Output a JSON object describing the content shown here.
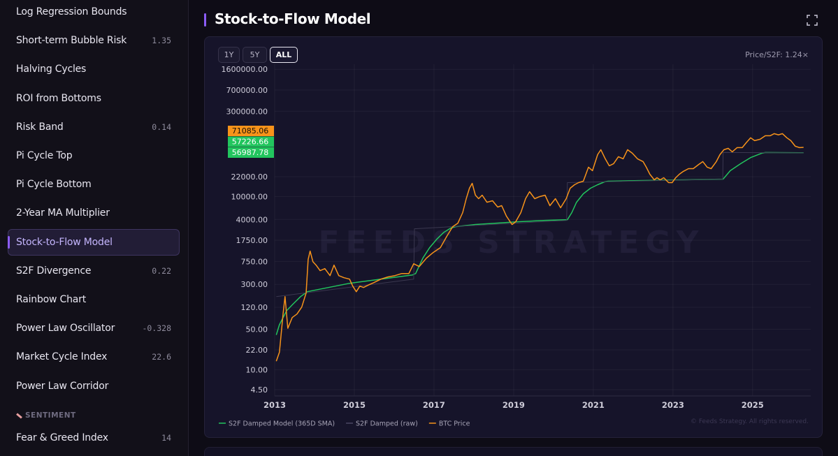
{
  "sidebar": {
    "items": [
      {
        "label": "Log Regression Bounds"
      },
      {
        "label": "Short-term Bubble Risk",
        "value": "1.35"
      },
      {
        "label": "Halving Cycles"
      },
      {
        "label": "ROI from Bottoms"
      },
      {
        "label": "Risk Band",
        "value": "0.14"
      },
      {
        "label": "Pi Cycle Top"
      },
      {
        "label": "Pi Cycle Bottom"
      },
      {
        "label": "2-Year MA Multiplier"
      },
      {
        "label": "Stock-to-Flow Model",
        "active": true
      },
      {
        "label": "S2F Divergence",
        "value": "0.22"
      },
      {
        "label": "Rainbow Chart"
      },
      {
        "label": "Power Law Oscillator",
        "value": "-0.328"
      },
      {
        "label": "Market Cycle Index",
        "value": "22.6"
      },
      {
        "label": "Power Law Corridor"
      }
    ],
    "section": "SENTIMENT",
    "section_items": [
      {
        "label": "Fear & Greed Index",
        "value": "14"
      }
    ]
  },
  "header": {
    "title": "Stock-to-Flow Model"
  },
  "range_buttons": {
    "options": [
      "1Y",
      "5Y",
      "ALL"
    ],
    "selected": "ALL"
  },
  "ratio_label": "Price/S2F: 1.24×",
  "chart_data": {
    "type": "line",
    "watermark": "FEEDS STRATEGY",
    "copyright": "© Feeds Strategy. All rights reserved.",
    "log_y": true,
    "grid": true,
    "legend": "bottom-left",
    "xlim": [
      2013,
      2026.46
    ],
    "xticks": [
      2013,
      2015,
      2017,
      2019,
      2021,
      2023,
      2025
    ],
    "ylim": [
      3.5,
      1800000
    ],
    "yticks": [
      {
        "value": 4.5,
        "label": "4.50"
      },
      {
        "value": 10,
        "label": "10.00"
      },
      {
        "value": 22,
        "label": "22.00"
      },
      {
        "value": 50,
        "label": "50.00"
      },
      {
        "value": 120,
        "label": "120.00"
      },
      {
        "value": 300,
        "label": "300.00"
      },
      {
        "value": 750,
        "label": "750.00"
      },
      {
        "value": 1750,
        "label": "1750.00"
      },
      {
        "value": 4000,
        "label": "4000.00"
      },
      {
        "value": 10000,
        "label": "10000.00"
      },
      {
        "value": 22000,
        "label": "22000.00"
      },
      {
        "value": 300000,
        "label": "300000.00"
      },
      {
        "value": 700000,
        "label": "700000.00"
      },
      {
        "value": 1600000,
        "label": "1600000.00"
      }
    ],
    "series": [
      {
        "name": "S2F Damped Model (365D SMA)",
        "color": "#22c55e",
        "current_value": 57226.66,
        "x": [
          2013.04,
          2013.12,
          2013.3,
          2013.47,
          2013.65,
          2013.82,
          2014.35,
          2014.88,
          2015.4,
          2015.93,
          2016.46,
          2016.54,
          2016.72,
          2016.89,
          2017.07,
          2017.25,
          2017.42,
          2017.54,
          2018.04,
          2018.56,
          2019.09,
          2019.79,
          2020.35,
          2020.46,
          2020.58,
          2020.75,
          2020.93,
          2021.11,
          2021.28,
          2021.37,
          2022.25,
          2023.3,
          2024.26,
          2024.44,
          2024.7,
          2024.96,
          2025.23,
          2025.32,
          2026.28
        ],
        "values": [
          40,
          60,
          105,
          139,
          184,
          224,
          265,
          313,
          350,
          391,
          437,
          462,
          855,
          1300,
          1816,
          2399,
          2838,
          3000,
          3266,
          3451,
          3648,
          3855,
          3963,
          5248,
          7962,
          11140,
          13930,
          16000,
          17910,
          18410,
          18920,
          19450,
          20000,
          27990,
          36980,
          47530,
          56230,
          57810,
          57227
        ]
      },
      {
        "name": "S2F Damped (raw)",
        "color": "#3b3850",
        "current_value": 56987.78,
        "x": [
          2013.04,
          2016.49,
          2016.51,
          2020.33,
          2020.35,
          2024.25,
          2024.26,
          2026.28
        ],
        "values": [
          184,
          370,
          2761,
          3855,
          17420,
          20000,
          57810,
          56988
        ]
      },
      {
        "name": "BTC Price",
        "color": "#f7931a",
        "current_value": 71085.06,
        "x": [
          2013.04,
          2013.12,
          2013.21,
          2013.26,
          2013.33,
          2013.44,
          2013.56,
          2013.68,
          2013.79,
          2013.84,
          2013.89,
          2013.96,
          2014.04,
          2014.14,
          2014.26,
          2014.39,
          2014.49,
          2014.61,
          2014.74,
          2014.88,
          2014.96,
          2015.05,
          2015.14,
          2015.23,
          2015.37,
          2015.49,
          2015.67,
          2015.84,
          2016.02,
          2016.19,
          2016.37,
          2016.49,
          2016.63,
          2016.81,
          2016.98,
          2017.16,
          2017.33,
          2017.47,
          2017.6,
          2017.72,
          2017.81,
          2017.89,
          2017.96,
          2018.04,
          2018.12,
          2018.21,
          2018.33,
          2018.47,
          2018.6,
          2018.7,
          2018.82,
          2018.96,
          2019.05,
          2019.18,
          2019.3,
          2019.4,
          2019.53,
          2019.65,
          2019.79,
          2019.91,
          2020.05,
          2020.18,
          2020.32,
          2020.42,
          2020.53,
          2020.63,
          2020.75,
          2020.88,
          2020.98,
          2021.11,
          2021.19,
          2021.3,
          2021.4,
          2021.51,
          2021.63,
          2021.75,
          2021.86,
          2021.98,
          2022.11,
          2022.25,
          2022.33,
          2022.42,
          2022.53,
          2022.6,
          2022.68,
          2022.77,
          2022.89,
          2022.98,
          2023.07,
          2023.16,
          2023.26,
          2023.39,
          2023.51,
          2023.65,
          2023.75,
          2023.86,
          2023.96,
          2024.09,
          2024.18,
          2024.28,
          2024.39,
          2024.49,
          2024.61,
          2024.74,
          2024.84,
          2024.95,
          2025.05,
          2025.19,
          2025.32,
          2025.44,
          2025.54,
          2025.65,
          2025.75,
          2025.86,
          2025.96,
          2026.07,
          2026.18,
          2026.28
        ],
        "values": [
          14,
          20,
          92,
          184,
          52,
          80,
          92,
          121,
          212,
          809,
          1130,
          743,
          647,
          518,
          562,
          426,
          647,
          426,
          391,
          370,
          280,
          224,
          280,
          265,
          296,
          322,
          370,
          403,
          426,
          462,
          462,
          684,
          611,
          855,
          1069,
          1300,
          2089,
          3000,
          3451,
          5248,
          9162,
          13930,
          16940,
          10540,
          9162,
          10540,
          7962,
          8433,
          6561,
          6934,
          4560,
          3266,
          3648,
          5248,
          9162,
          12100,
          9162,
          9954,
          10540,
          6934,
          9162,
          6383,
          9162,
          13930,
          16000,
          17420,
          18410,
          32210,
          27990,
          53210,
          64710,
          44980,
          34040,
          36980,
          48870,
          44980,
          64710,
          56230,
          44980,
          40270,
          32210,
          24320,
          19450,
          21180,
          19450,
          21180,
          17420,
          17420,
          21180,
          24320,
          27230,
          30410,
          30410,
          35970,
          40270,
          32210,
          30410,
          40270,
          53210,
          64710,
          68390,
          59430,
          70310,
          70310,
          85510,
          104000,
          92900,
          98200,
          113000,
          113000,
          122700,
          117000,
          122700,
          104000,
          92900,
          74300,
          70310,
          71085
        ]
      }
    ]
  }
}
